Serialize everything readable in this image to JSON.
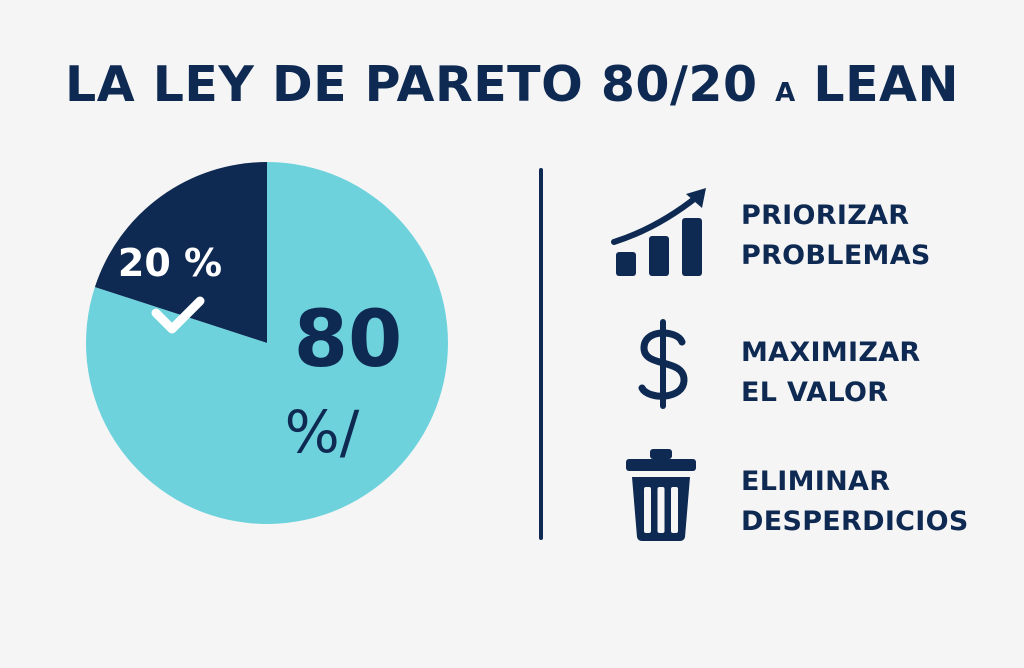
{
  "title": {
    "main": "LA LEY DE PARETO 80/20",
    "connector": "A",
    "end": "LEAN"
  },
  "chart_data": {
    "type": "pie",
    "slices": [
      {
        "label": "20 %",
        "value": 20,
        "color": "#0f2a52"
      },
      {
        "label": "80 %/",
        "value": 80,
        "color": "#6dd2dc"
      }
    ],
    "labels": {
      "small_value": "20 %",
      "large_number": "80",
      "large_symbol": "%/"
    }
  },
  "colors": {
    "navy": "#0f2a52",
    "teal": "#6dd2dc",
    "background": "#f5f5f6"
  },
  "items": [
    {
      "icon": "bar-chart-trend-icon",
      "line1": "PRIORIZAR",
      "line2": "PROBLEMAS"
    },
    {
      "icon": "dollar-icon",
      "line1": "MAXIMIZAR",
      "line2": "EL VALOR"
    },
    {
      "icon": "trash-icon",
      "line1": "ELIMINAR",
      "line2": "DESPERDICIOS"
    }
  ]
}
